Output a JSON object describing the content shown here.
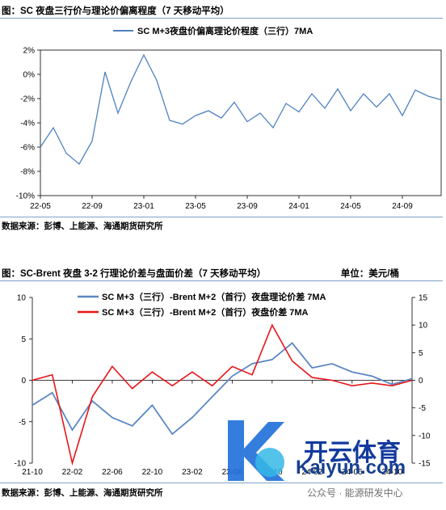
{
  "figure1": {
    "title": "图：SC 夜盘三行价与理论价偏离程度（7 天移动平均）",
    "source": "数据来源：彭博、上能源、海通期货研究所",
    "chart_data": {
      "type": "line",
      "legend": "SC M+3夜盘价偏离理论价程度（三行）7MA",
      "ylim": [
        -10,
        2
      ],
      "yticks": [
        "2%",
        "0%",
        "-2%",
        "-4%",
        "-6%",
        "-8%",
        "-10%"
      ],
      "ytick_values": [
        2,
        0,
        -2,
        -4,
        -6,
        -8,
        -10
      ],
      "xticks": [
        "22-05",
        "22-09",
        "23-01",
        "23-05",
        "23-09",
        "24-01",
        "24-05",
        "24-09"
      ],
      "xlim": [
        "2022-05",
        "2024-12"
      ],
      "color": "#4e82c0",
      "series": [
        {
          "x": [
            "2022-05",
            "2022-06",
            "2022-07",
            "2022-08",
            "2022-09",
            "2022-10",
            "2022-11",
            "2022-12",
            "2023-01",
            "2023-02",
            "2023-03",
            "2023-04",
            "2023-05",
            "2023-06",
            "2023-07",
            "2023-08",
            "2023-09",
            "2023-10",
            "2023-11",
            "2023-12",
            "2024-01",
            "2024-02",
            "2024-03",
            "2024-04",
            "2024-05",
            "2024-06",
            "2024-07",
            "2024-08",
            "2024-09",
            "2024-10",
            "2024-11",
            "2024-12"
          ],
          "values": [
            -6.0,
            -4.4,
            -6.5,
            -7.4,
            -5.5,
            0.2,
            -3.2,
            -0.6,
            1.6,
            -0.5,
            -3.8,
            -4.1,
            -3.4,
            -3.0,
            -3.6,
            -2.3,
            -3.9,
            -3.2,
            -4.4,
            -2.4,
            -3.1,
            -1.6,
            -2.8,
            -1.2,
            -3.0,
            -1.6,
            -2.7,
            -1.6,
            -3.4,
            -1.3,
            -1.8,
            -2.1
          ]
        }
      ]
    }
  },
  "figure2": {
    "title": "图：SC-Brent 夜盘 3-2 行理论价差与盘面价差（7 天移动平均）",
    "unit": "单位：美元/桶",
    "source": "数据来源：彭博、上能源、海通期货研究所",
    "chart_data": {
      "type": "line",
      "x": [
        "2021-10",
        "2021-12",
        "2022-02",
        "2022-04",
        "2022-06",
        "2022-08",
        "2022-10",
        "2022-12",
        "2023-02",
        "2023-04",
        "2023-06",
        "2023-08",
        "2023-10",
        "2023-12",
        "2024-02",
        "2024-04",
        "2024-06",
        "2024-08",
        "2024-10",
        "2024-12"
      ],
      "xticks": [
        "21-10",
        "22-02",
        "22-06",
        "22-10",
        "23-02",
        "23-06",
        "23-10",
        "24-02",
        "24-06",
        "24-10"
      ],
      "ylim_left": [
        -10,
        10
      ],
      "yticks_left": [
        "10",
        "5",
        "0",
        "-5",
        "-10"
      ],
      "ylim_right": [
        -15,
        15
      ],
      "yticks_right": [
        "15",
        "10",
        "5",
        "0",
        "-5",
        "-10",
        "-15"
      ],
      "series": [
        {
          "name": "SC M+3（三行）-Brent M+2（首行）夜盘理论价差 7MA",
          "axis": "left",
          "color": "#5b87c4",
          "values": [
            -3.0,
            -1.5,
            -6.0,
            -2.5,
            -4.5,
            -5.5,
            -3.0,
            -6.5,
            -4.5,
            -2.0,
            0.5,
            2.0,
            2.5,
            4.5,
            1.5,
            2.0,
            1.0,
            0.5,
            -0.5,
            0.2
          ]
        },
        {
          "name": "SC M+3（三行）-Brent M+2（首行）夜盘价差 7MA",
          "axis": "right",
          "color": "#e8141a",
          "values": [
            0.0,
            1.0,
            -15.0,
            -3.0,
            2.5,
            -1.5,
            1.5,
            -1.0,
            1.5,
            -1.0,
            2.5,
            1.0,
            10.0,
            3.5,
            0.5,
            0.0,
            -1.0,
            -0.5,
            -1.0,
            0.0
          ]
        }
      ]
    }
  },
  "watermark": {
    "brand_title": "开云体育",
    "brand_url": "Kaiyun.com",
    "wechat": "公众号 · 能源研发中心"
  }
}
